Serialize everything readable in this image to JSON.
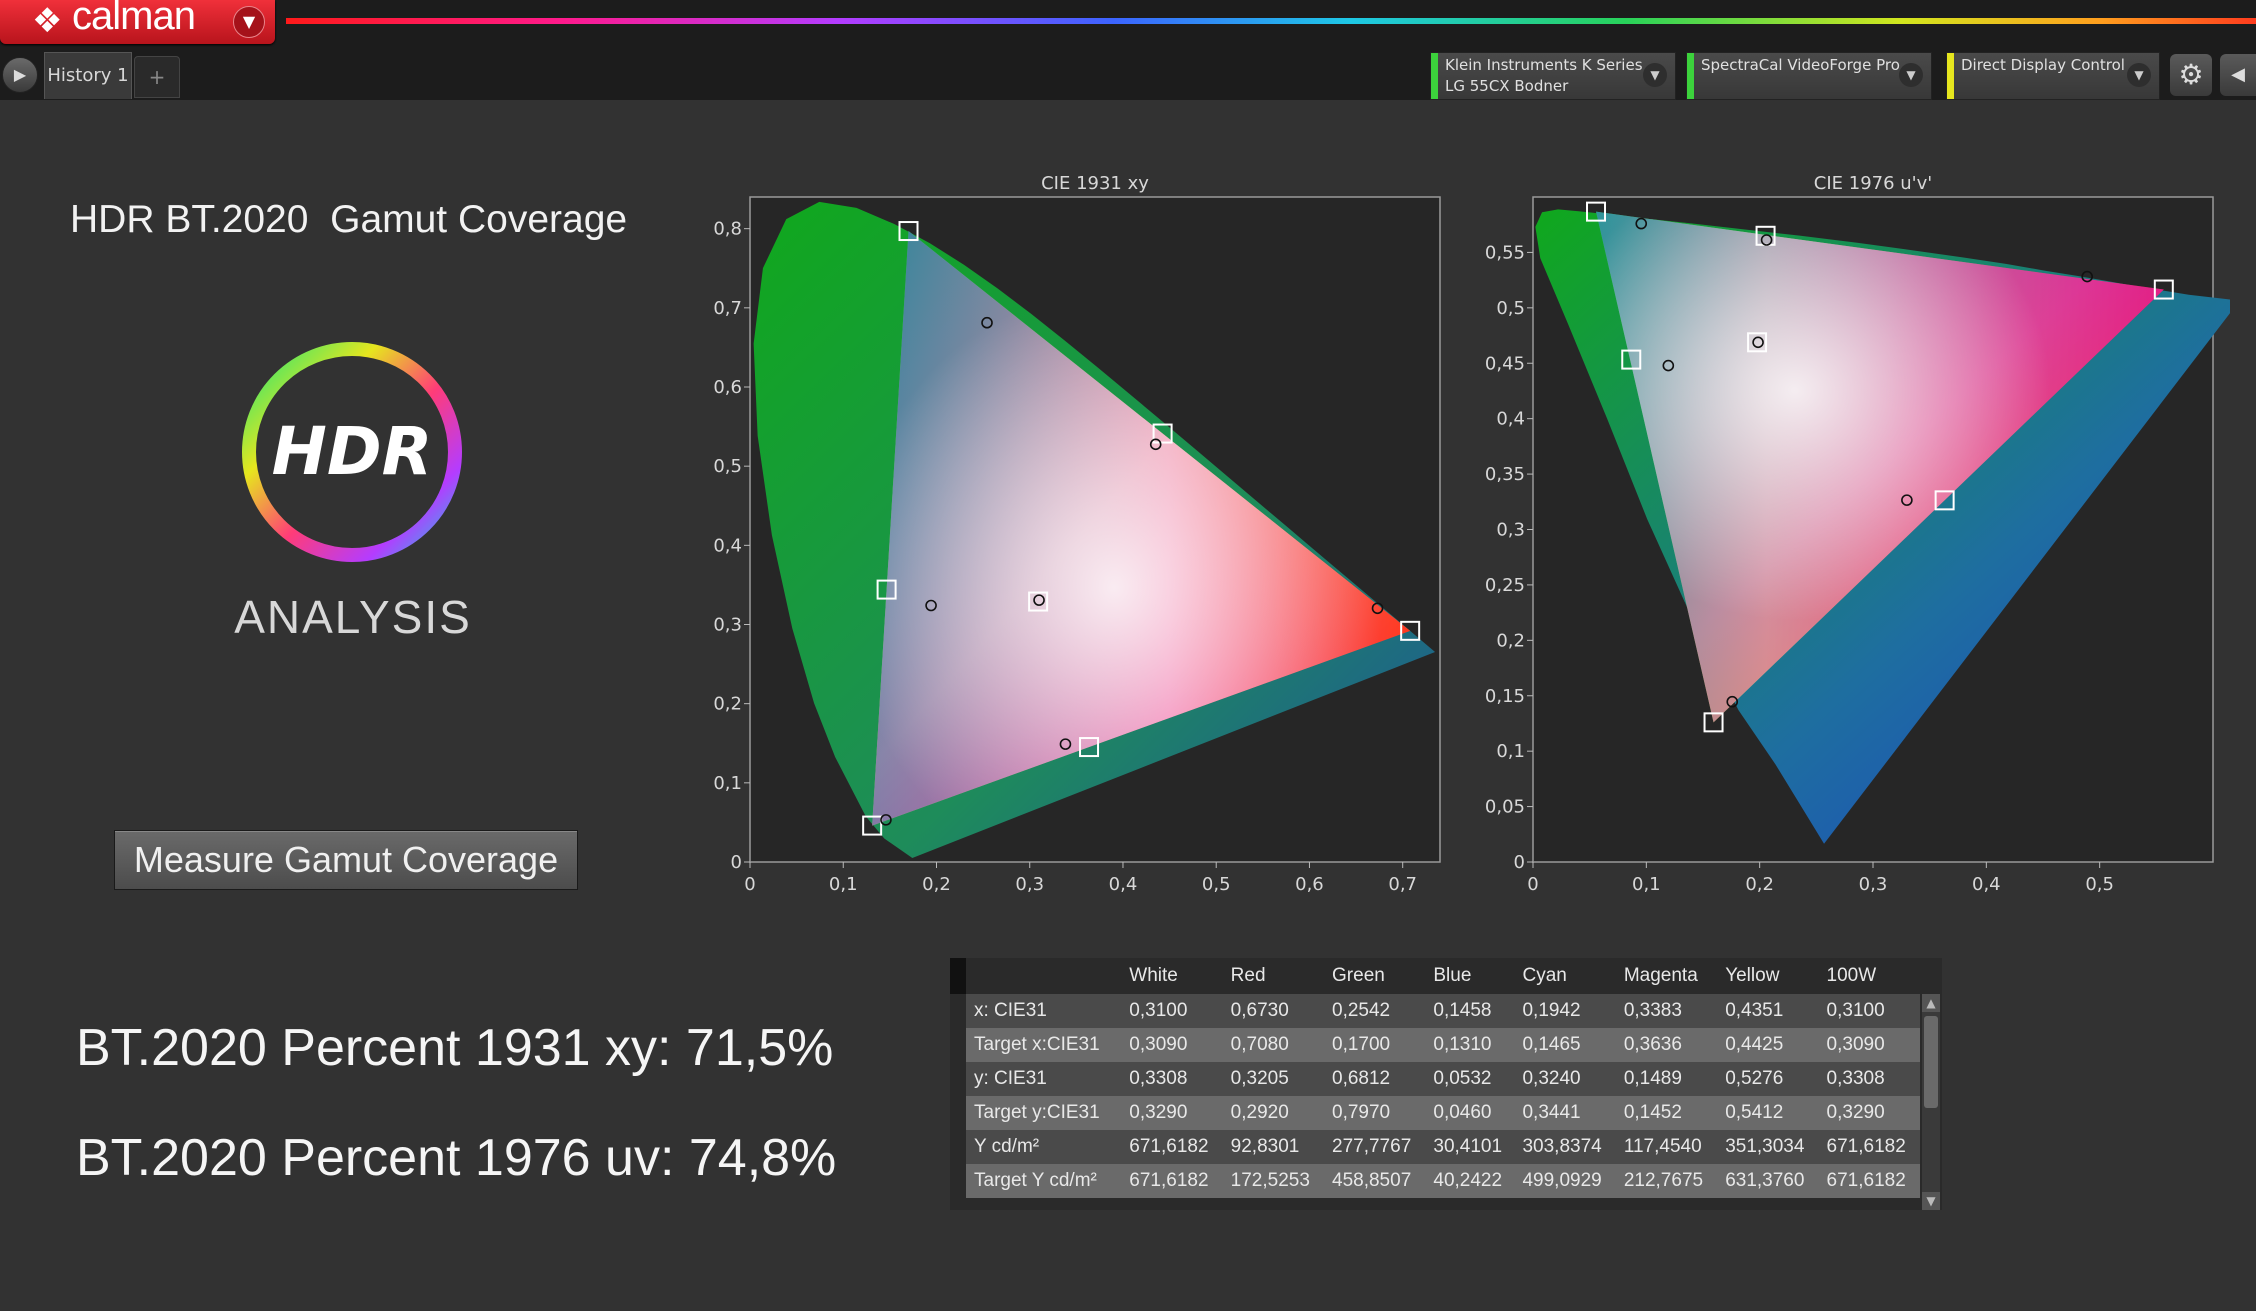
{
  "app": {
    "logo_text": "calman"
  },
  "tabs": [
    {
      "label": "History 1"
    }
  ],
  "devices": [
    {
      "line1": "Klein Instruments K Series",
      "line2": "LG 55CX Bodner",
      "color": "#3cd23c"
    },
    {
      "line1": "SpectraCal VideoForge Pro",
      "line2": "",
      "color": "#3cd23c"
    },
    {
      "line1": "Direct Display Control",
      "line2": "",
      "color": "#e6e61e"
    }
  ],
  "page": {
    "title": "HDR BT.2020  Gamut Coverage",
    "logo_text": "HDR",
    "analysis_label": "ANALYSIS",
    "measure_button_label": "Measure Gamut Coverage",
    "percent_1931": "BT.2020 Percent 1931 xy: 71,5%",
    "percent_1976": "BT.2020 Percent 1976 uv: 74,8%"
  },
  "chart_data": [
    {
      "type": "scatter",
      "title": "CIE 1931 xy",
      "xlim": [
        0,
        0.74
      ],
      "ylim": [
        0,
        0.84
      ],
      "x_ticks": [
        "0",
        "0,1",
        "0,2",
        "0,3",
        "0,4",
        "0,5",
        "0,6",
        "0,7"
      ],
      "y_ticks": [
        "0",
        "0,1",
        "0,2",
        "0,3",
        "0,4",
        "0,5",
        "0,6",
        "0,7",
        "0,8"
      ],
      "series": [
        {
          "values": [
            [
              0.309,
              0.329
            ],
            [
              0.708,
              0.292
            ],
            [
              0.17,
              0.797
            ],
            [
              0.131,
              0.046
            ],
            [
              0.1465,
              0.3441
            ],
            [
              0.3636,
              0.1452
            ],
            [
              0.4425,
              0.5412
            ]
          ]
        },
        {
          "values": [
            [
              0.31,
              0.3308
            ],
            [
              0.673,
              0.3205
            ],
            [
              0.2542,
              0.6812
            ],
            [
              0.1458,
              0.0532
            ],
            [
              0.1942,
              0.324
            ],
            [
              0.3383,
              0.1489
            ],
            [
              0.4351,
              0.5276
            ]
          ]
        }
      ]
    },
    {
      "type": "scatter",
      "title": "CIE 1976 u'v'",
      "xlim": [
        0,
        0.6
      ],
      "ylim": [
        0,
        0.6
      ],
      "x_ticks": [
        "0",
        "0,1",
        "0,2",
        "0,3",
        "0,4",
        "0,5"
      ],
      "y_ticks": [
        "0",
        "0,05",
        "0,1",
        "0,15",
        "0,2",
        "0,25",
        "0,3",
        "0,35",
        "0,4",
        "0,45",
        "0,5",
        "0,55"
      ],
      "series": [
        {
          "values": [
            [
              0.1977,
              0.4689
            ],
            [
              0.5566,
              0.5165
            ],
            [
              0.0556,
              0.5868
            ],
            [
              0.1593,
              0.126
            ],
            [
              0.0867,
              0.4533
            ],
            [
              0.3632,
              0.3263
            ],
            [
              0.2052,
              0.565
            ]
          ]
        },
        {
          "values": [
            [
              0.1986,
              0.4689
            ],
            [
              0.489,
              0.5282
            ],
            [
              0.0955,
              0.576
            ],
            [
              0.1758,
              0.1446
            ],
            [
              0.1194,
              0.4479
            ],
            [
              0.3299,
              0.3265
            ],
            [
              0.2061,
              0.5612
            ]
          ]
        }
      ]
    }
  ],
  "table": {
    "columns": [
      "",
      "White",
      "Red",
      "Green",
      "Blue",
      "Cyan",
      "Magenta",
      "Yellow",
      "100W"
    ],
    "rows": [
      [
        "x: CIE31",
        "0,3100",
        "0,6730",
        "0,2542",
        "0,1458",
        "0,1942",
        "0,3383",
        "0,4351",
        "0,3100"
      ],
      [
        "Target x:CIE31",
        "0,3090",
        "0,7080",
        "0,1700",
        "0,1310",
        "0,1465",
        "0,3636",
        "0,4425",
        "0,3090"
      ],
      [
        "y: CIE31",
        "0,3308",
        "0,3205",
        "0,6812",
        "0,0532",
        "0,3240",
        "0,1489",
        "0,5276",
        "0,3308"
      ],
      [
        "Target y:CIE31",
        "0,3290",
        "0,2920",
        "0,7970",
        "0,0460",
        "0,3441",
        "0,1452",
        "0,5412",
        "0,3290"
      ],
      [
        "Y cd/m²",
        "671,6182",
        "92,8301",
        "277,7767",
        "30,4101",
        "303,8374",
        "117,4540",
        "351,3034",
        "671,6182"
      ],
      [
        "Target Y cd/m²",
        "671,6182",
        "172,5253",
        "458,8507",
        "40,2422",
        "499,0929",
        "212,7675",
        "631,3760",
        "671,6182"
      ]
    ]
  }
}
